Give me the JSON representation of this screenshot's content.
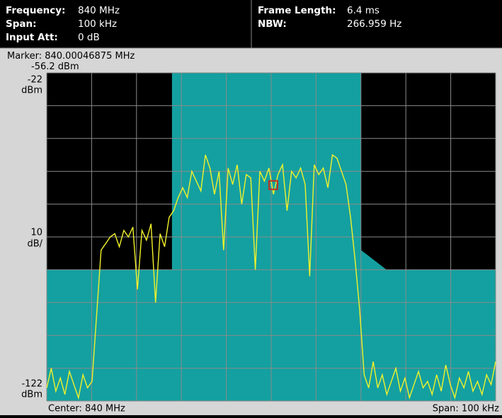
{
  "header": {
    "left": [
      {
        "label": "Frequency:",
        "value": "840 MHz"
      },
      {
        "label": "Span:",
        "value": "100 kHz"
      },
      {
        "label": "Input Att:",
        "value": "0 dB"
      }
    ],
    "right": [
      {
        "label": "Frame Length:",
        "value": "6.4 ms"
      },
      {
        "label": "NBW:",
        "value": "266.959 Hz"
      }
    ]
  },
  "chart_data": {
    "type": "line",
    "marker": {
      "label": "Marker:",
      "x": 840.00046875,
      "x_unit": "MHz",
      "value": -56.2,
      "value_unit": "dBm"
    },
    "y_unit": "dBm",
    "scale": 10,
    "scale_unit": "dB/",
    "ylim": [
      -122,
      -22
    ],
    "xlim": [
      839.95,
      840.05
    ],
    "ygrid": [
      -122,
      -112,
      -102,
      -92,
      -82,
      -72,
      -62,
      -52,
      -42,
      -32,
      -22
    ],
    "xgrid": [
      839.95,
      839.96,
      839.97,
      839.98,
      839.99,
      840,
      840.01,
      840.02,
      840.03,
      840.04,
      840.05
    ],
    "grid": true,
    "center_label": "Center: 840 MHz",
    "span_label": "Span: 100 kHz",
    "mask": {
      "color": "#14a0a0",
      "x": [
        839.95,
        839.9779,
        839.9779,
        840.02,
        840.02,
        840.0257,
        840.05
      ],
      "values": [
        -82,
        -82,
        -22,
        -22,
        -76,
        -82,
        -82
      ]
    },
    "color": "#f2f22a",
    "values": [
      -118,
      -112,
      -119,
      -115,
      -120,
      -113,
      -117,
      -121,
      -114,
      -118,
      -116,
      -96,
      -76,
      -74,
      -72,
      -71,
      -75,
      -70,
      -72,
      -69,
      -88,
      -70,
      -73,
      -68,
      -92,
      -71,
      -75,
      -66,
      -64,
      -60,
      -57,
      -60,
      -52,
      -55,
      -58,
      -47,
      -51,
      -59,
      -52,
      -76,
      -51,
      -56,
      -50,
      -62,
      -53,
      -54,
      -82,
      -52,
      -55,
      -51,
      -59,
      -53,
      -50,
      -64,
      -52,
      -54,
      -51,
      -56,
      -84,
      -50,
      -53,
      -51,
      -57,
      -47,
      -48,
      -52,
      -56,
      -66,
      -79,
      -94,
      -114,
      -118,
      -110,
      -118,
      -114,
      -120,
      -116,
      -112,
      -119,
      -115,
      -121,
      -117,
      -113,
      -118,
      -116,
      -120,
      -114,
      -119,
      -111,
      -117,
      -121,
      -115,
      -118,
      -113,
      -119,
      -116,
      -120,
      -114,
      -117,
      -110
    ]
  }
}
